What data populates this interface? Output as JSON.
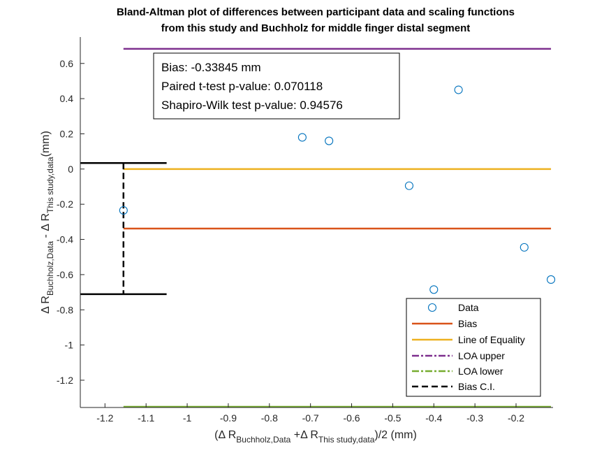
{
  "chart_data": {
    "type": "scatter",
    "title_line1": "Bland-Altman plot of differences between participant data and scaling functions",
    "title_line2": "from this study and Buchholz for middle finger distal segment",
    "xlabel": {
      "open": "(Δ R",
      "sub1": "Buchholz,Data",
      "mid": " +Δ R",
      "sub2": "This study,data",
      "close": ")/2 (mm)"
    },
    "ylabel": {
      "part1": "Δ R",
      "sub1": "Buchholz,Data",
      "part2": " - Δ R",
      "sub2": "This study,data",
      "part3": "(mm)"
    },
    "xlim": [
      -1.26,
      -0.11
    ],
    "ylim": [
      -1.355,
      0.75
    ],
    "xticks": [
      -1.2,
      -1.1,
      -1,
      -0.9,
      -0.8,
      -0.7,
      -0.6,
      -0.5,
      -0.4,
      -0.3,
      -0.2
    ],
    "xtick_labels": [
      "-1.2",
      "-1.1",
      "-1",
      "-0.9",
      "-0.8",
      "-0.7",
      "-0.6",
      "-0.5",
      "-0.4",
      "-0.3",
      "-0.2"
    ],
    "yticks": [
      0.6,
      0.4,
      0.2,
      0,
      -0.2,
      -0.4,
      -0.6,
      -0.8,
      -1,
      -1.2
    ],
    "ytick_labels": [
      "0.6",
      "0.4",
      "0.2",
      "0",
      "-0.2",
      "-0.4",
      "-0.6",
      "-0.8",
      "-1",
      "-1.2"
    ],
    "grid": false,
    "series": [
      {
        "name": "Data",
        "color": "#0072BD",
        "points": [
          {
            "x": -1.155,
            "y": -0.235
          },
          {
            "x": -0.72,
            "y": 0.18
          },
          {
            "x": -0.655,
            "y": 0.16
          },
          {
            "x": -0.46,
            "y": -0.095
          },
          {
            "x": -0.4,
            "y": -0.685
          },
          {
            "x": -0.34,
            "y": 0.45
          },
          {
            "x": -0.18,
            "y": -0.445
          },
          {
            "x": -0.115,
            "y": -0.628
          }
        ]
      }
    ],
    "lines": {
      "x_range": [
        -1.155,
        -0.115
      ],
      "bias": {
        "name": "Bias",
        "y": -0.33845,
        "color": "#D95319"
      },
      "equality": {
        "name": "Line of Equality",
        "y": 0,
        "color": "#EDB120"
      },
      "loa_upper": {
        "name": "LOA upper",
        "y": 0.683,
        "color": "#7E2F8E"
      },
      "loa_lower": {
        "name": "LOA lower",
        "y": -1.36,
        "color": "#77AC30"
      },
      "bias_ci": {
        "name": "Bias C.I.",
        "x": -1.155,
        "upper": 0.034,
        "lower": -0.711,
        "cap_x_end": -1.05,
        "color": "#000000"
      }
    },
    "annotation": {
      "bias": "Bias: -0.33845 mm",
      "ttest": "Paired t-test p-value: 0.070118",
      "shapiro": "Shapiro-Wilk test p-value: 0.94576"
    },
    "legend": {
      "placement": "bottom-right",
      "entries": [
        "Data",
        "Bias",
        "Line of Equality",
        "LOA upper",
        "LOA lower",
        "Bias C.I."
      ]
    }
  }
}
